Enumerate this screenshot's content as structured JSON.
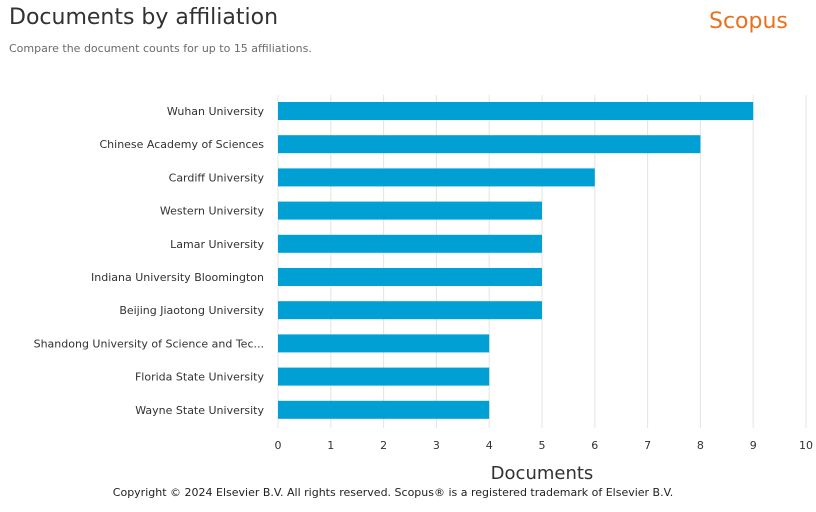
{
  "header": {
    "title": "Documents by affiliation",
    "subtitle": "Compare the document counts for up to 15 affiliations.",
    "brand": "Scopus"
  },
  "footer": {
    "copyright": "Copyright © 2024 Elsevier B.V. All rights reserved. Scopus® is a registered trademark of Elsevier B.V."
  },
  "colors": {
    "bar": "#009fd4",
    "brand": "#e9711c"
  },
  "chart_data": {
    "type": "bar",
    "orientation": "horizontal",
    "title": "Documents by affiliation",
    "xlabel": "Documents",
    "ylabel": "",
    "xlim": [
      0,
      10
    ],
    "xticks": [
      0,
      1,
      2,
      3,
      4,
      5,
      6,
      7,
      8,
      9,
      10
    ],
    "grid": true,
    "categories": [
      "Wuhan University",
      "Chinese Academy of Sciences",
      "Cardiff University",
      "Western University",
      "Lamar University",
      "Indiana University Bloomington",
      "Beijing Jiaotong University",
      "Shandong University of Science and Tec...",
      "Florida State University",
      "Wayne State University"
    ],
    "values": [
      9,
      8,
      6,
      5,
      5,
      5,
      5,
      4,
      4,
      4
    ]
  }
}
